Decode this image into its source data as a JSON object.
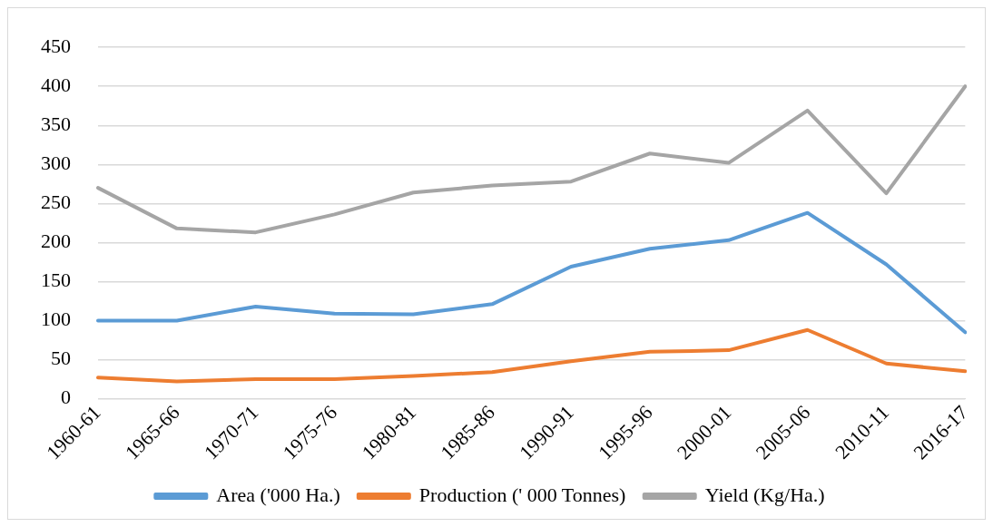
{
  "chart_data": {
    "type": "line",
    "categories": [
      "1960-61",
      "1965-66",
      "1970-71",
      "1975-76",
      "1980-81",
      "1985-86",
      "1990-91",
      "1995-96",
      "2000-01",
      "2005-06",
      "2010-11",
      "2016-17"
    ],
    "series": [
      {
        "name": "Area ('000 Ha.)",
        "color": "#5b9bd5",
        "values": [
          100,
          100,
          118,
          109,
          108,
          121,
          169,
          192,
          203,
          238,
          172,
          85
        ]
      },
      {
        "name": "Production (' 000 Tonnes)",
        "color": "#ed7d31",
        "values": [
          27,
          22,
          25,
          25,
          29,
          34,
          48,
          60,
          62,
          88,
          45,
          35
        ]
      },
      {
        "name": "Yield (Kg/Ha.)",
        "color": "#a5a5a5",
        "values": [
          270,
          218,
          213,
          236,
          264,
          273,
          278,
          314,
          302,
          369,
          263,
          400
        ]
      }
    ],
    "ylim": [
      0,
      450
    ],
    "yticks": [
      0,
      50,
      100,
      150,
      200,
      250,
      300,
      350,
      400,
      450
    ],
    "grid": "y",
    "legend": "bottom",
    "marker": "none",
    "line_style": "solid"
  }
}
